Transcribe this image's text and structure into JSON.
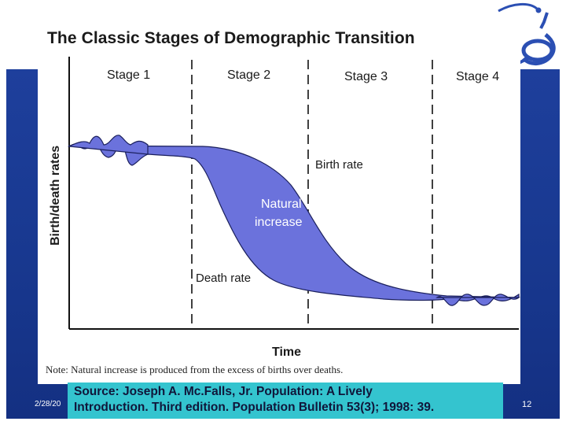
{
  "slide": {
    "date": "2/28/20",
    "page_number": "12"
  },
  "figure": {
    "title": "The Classic Stages of Demographic Transition",
    "stages": [
      "Stage 1",
      "Stage 2",
      "Stage 3",
      "Stage 4"
    ],
    "y_axis_label": "Birth/death rates",
    "x_axis_label": "Time",
    "labels": {
      "birth_rate": "Birth rate",
      "natural_increase_line1": "Natural",
      "natural_increase_line2": "increase",
      "death_rate": "Death rate"
    },
    "note": "Note: Natural increase is produced from the excess of births over deaths."
  },
  "source": {
    "line1": "Source: Joseph A. Mc.Falls, Jr. Population: A Lively",
    "line2": "Introduction. Third edition. Population Bulletin 53(3); 1998: 39."
  },
  "colors": {
    "band": "#1e3f9c",
    "fill": "#6b72dc",
    "source_box": "#34c4cf"
  }
}
